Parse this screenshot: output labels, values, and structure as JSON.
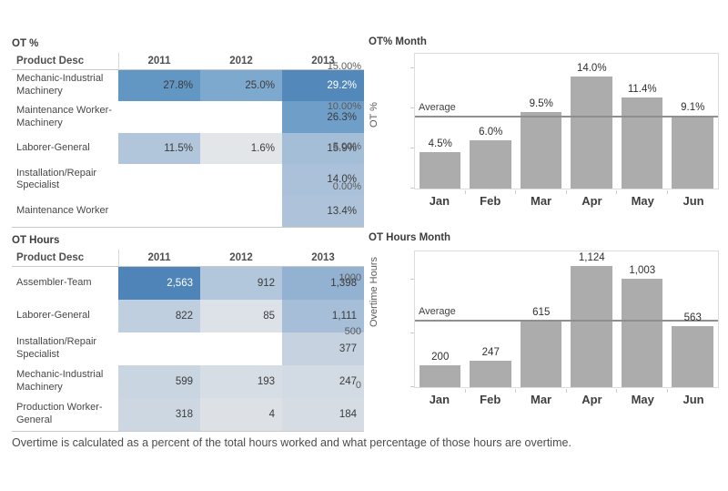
{
  "footer": {
    "note": "Overtime is calculated as a percent of the total hours worked and what percentage of those hours are overtime."
  },
  "palette": {
    "bar_gray": "#acacac",
    "average_line": "#8f8f8f",
    "plot_border": "#dcdcdc",
    "dark_cell_text": "#ffffff",
    "cell_text": "#3b3b3b"
  },
  "tables": [
    {
      "title": "OT %",
      "columns": [
        "Product Desc",
        "2011",
        "2012",
        "2013"
      ],
      "rows": [
        {
          "label": "Mechanic-Industrial Machinery",
          "cells": [
            {
              "v": "27.8%",
              "bg": "#6296c3"
            },
            {
              "v": "25.0%",
              "bg": "#7da9ce"
            },
            {
              "v": "29.2%",
              "bg": "#5388ba",
              "fg": "#ffffff"
            }
          ]
        },
        {
          "label": "Maintenance Worker-Machinery",
          "cells": [
            {
              "v": ""
            },
            {
              "v": ""
            },
            {
              "v": "26.3%",
              "bg": "#6f9fc8"
            }
          ]
        },
        {
          "label": "Laborer-General",
          "cells": [
            {
              "v": "11.5%",
              "bg": "#b1c6db"
            },
            {
              "v": "1.6%",
              "bg": "#e3e6e9"
            },
            {
              "v": "15.9%",
              "bg": "#a4bed8"
            }
          ]
        },
        {
          "label": "Installation/Repair Specialist",
          "cells": [
            {
              "v": ""
            },
            {
              "v": ""
            },
            {
              "v": "14.0%",
              "bg": "#abc1d9"
            }
          ]
        },
        {
          "label": "Maintenance Worker",
          "cells": [
            {
              "v": ""
            },
            {
              "v": ""
            },
            {
              "v": "13.4%",
              "bg": "#aec3da"
            }
          ]
        }
      ]
    },
    {
      "title": "OT Hours",
      "columns": [
        "Product Desc",
        "2011",
        "2012",
        "2013"
      ],
      "rows": [
        {
          "label": "Assembler-Team",
          "cells": [
            {
              "v": "2,563",
              "bg": "#4e84b7",
              "fg": "#ffffff"
            },
            {
              "v": "912",
              "bg": "#b2c7db"
            },
            {
              "v": "1,398",
              "bg": "#93b1d0"
            }
          ]
        },
        {
          "label": "Laborer-General",
          "cells": [
            {
              "v": "822",
              "bg": "#c0cfdf"
            },
            {
              "v": "85",
              "bg": "#dde2e8"
            },
            {
              "v": "1,111",
              "bg": "#a6bed7"
            }
          ]
        },
        {
          "label": "Installation/Repair Specialist",
          "cells": [
            {
              "v": ""
            },
            {
              "v": ""
            },
            {
              "v": "377",
              "bg": "#c6d2e0"
            }
          ]
        },
        {
          "label": "Mechanic-Industrial Machinery",
          "cells": [
            {
              "v": "599",
              "bg": "#c9d5e1"
            },
            {
              "v": "193",
              "bg": "#d7dde5"
            },
            {
              "v": "247",
              "bg": "#d2dbe3"
            }
          ]
        },
        {
          "label": "Production Worker-General",
          "cells": [
            {
              "v": "318",
              "bg": "#cdd7e2"
            },
            {
              "v": "4",
              "bg": "#dde1e6"
            },
            {
              "v": "184",
              "bg": "#d5dce4"
            }
          ]
        }
      ]
    }
  ],
  "chart_data": [
    {
      "type": "bar",
      "title": "OT% Month",
      "ylabel": "OT %",
      "categories": [
        "Jan",
        "Feb",
        "Mar",
        "Apr",
        "May",
        "Jun"
      ],
      "values": [
        4.5,
        6.0,
        9.5,
        14.0,
        11.4,
        9.1
      ],
      "value_labels": [
        "4.5%",
        "6.0%",
        "9.5%",
        "14.0%",
        "11.4%",
        "9.1%"
      ],
      "yticks": [
        {
          "v": 0,
          "label": "0.00%"
        },
        {
          "v": 5,
          "label": "5.00%"
        },
        {
          "v": 10,
          "label": "10.00%"
        },
        {
          "v": 15,
          "label": "15.00%"
        }
      ],
      "ylim": [
        0,
        16.8
      ],
      "average": {
        "label": "Average",
        "value": 9.08
      },
      "bar_color": "#acacac",
      "grid": false,
      "legend": "none"
    },
    {
      "type": "bar",
      "title": "OT Hours Month",
      "ylabel": "Overtime Hours",
      "categories": [
        "Jan",
        "Feb",
        "Mar",
        "Apr",
        "May",
        "Jun"
      ],
      "values": [
        200,
        247,
        615,
        1124,
        1003,
        563
      ],
      "value_labels": [
        "200",
        "247",
        "615",
        "1,124",
        "1,003",
        "563"
      ],
      "yticks": [
        {
          "v": 0,
          "label": "0"
        },
        {
          "v": 500,
          "label": "500"
        },
        {
          "v": 1000,
          "label": "1000"
        }
      ],
      "ylim": [
        0,
        1258
      ],
      "average": {
        "label": "Average",
        "value": 625
      },
      "bar_color": "#acacac",
      "grid": false,
      "legend": "none"
    }
  ]
}
